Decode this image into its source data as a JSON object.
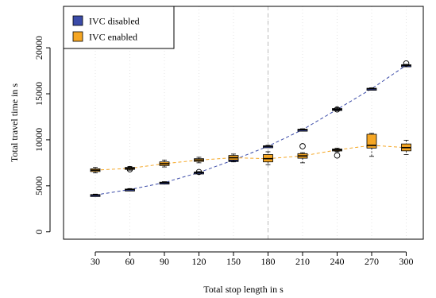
{
  "chart_data": {
    "type": "box",
    "xlabel": "Total stop length in s",
    "ylabel": "Total travel time in s",
    "x": [
      30,
      60,
      90,
      120,
      150,
      180,
      210,
      240,
      270,
      300
    ],
    "x_ticks": [
      "30",
      "60",
      "90",
      "120",
      "150",
      "180",
      "210",
      "240",
      "270",
      "300"
    ],
    "y_ticks": [
      0,
      5000,
      10000,
      15000,
      20000
    ],
    "ylim": [
      -800,
      24500
    ],
    "grid": "vertical dotted",
    "reference_line_x": 180,
    "legend": "top-left",
    "series": [
      {
        "name": "IVC disabled",
        "color": "#3b4ba8",
        "median": [
          4000,
          4600,
          5350,
          6450,
          7800,
          9300,
          11100,
          13300,
          15550,
          18100
        ],
        "box": [
          [
            3950,
            4050
          ],
          [
            4550,
            4650
          ],
          [
            5300,
            5400
          ],
          [
            6400,
            6500
          ],
          [
            7750,
            7850
          ],
          [
            9250,
            9350
          ],
          [
            11050,
            11150
          ],
          [
            13250,
            13400
          ],
          [
            15500,
            15600
          ],
          [
            18050,
            18150
          ]
        ],
        "whiskers": [
          [
            3900,
            4100
          ],
          [
            4500,
            4700
          ],
          [
            5250,
            5450
          ],
          [
            6350,
            6550
          ],
          [
            7700,
            7900
          ],
          [
            9200,
            9400
          ],
          [
            11000,
            11200
          ],
          [
            13150,
            13500
          ],
          [
            15450,
            15650
          ],
          [
            18000,
            18200
          ]
        ],
        "outliers": [
          [],
          [],
          [],
          [
            6500
          ],
          [],
          [],
          [],
          [
            13300
          ],
          [],
          [
            18300
          ]
        ]
      },
      {
        "name": "IVC enabled",
        "color": "#f5a623",
        "median": [
          6700,
          6900,
          7400,
          7800,
          8050,
          7950,
          8250,
          8900,
          9400,
          9150
        ],
        "box": [
          [
            6550,
            6850
          ],
          [
            6800,
            7000
          ],
          [
            7200,
            7600
          ],
          [
            7650,
            7950
          ],
          [
            7800,
            8300
          ],
          [
            7600,
            8400
          ],
          [
            8000,
            8500
          ],
          [
            8800,
            9000
          ],
          [
            9100,
            10600
          ],
          [
            8800,
            9550
          ]
        ],
        "whiskers": [
          [
            6400,
            7000
          ],
          [
            6700,
            7100
          ],
          [
            7050,
            7800
          ],
          [
            7500,
            8100
          ],
          [
            7600,
            8450
          ],
          [
            7300,
            8700
          ],
          [
            7500,
            8600
          ],
          [
            8700,
            9100
          ],
          [
            8200,
            10700
          ],
          [
            8400,
            9950
          ]
        ],
        "outliers": [
          [],
          [
            6800
          ],
          [],
          [],
          [],
          [],
          [
            9300
          ],
          [
            8300
          ],
          [],
          []
        ]
      }
    ]
  }
}
